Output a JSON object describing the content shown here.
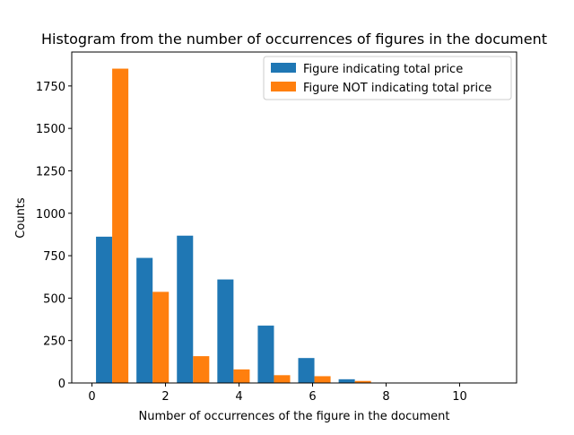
{
  "chart_data": {
    "type": "bar",
    "title": "Histogram from the number of occurrences of figures in the document",
    "xlabel": "Number of occurrences of the figure in the document",
    "ylabel": "Counts",
    "xlim": [
      -0.55,
      11.55
    ],
    "ylim": [
      0,
      1950
    ],
    "xticks": [
      0,
      2,
      4,
      6,
      8,
      10
    ],
    "yticks": [
      0,
      250,
      500,
      750,
      1000,
      1250,
      1500,
      1750
    ],
    "bin_edges": [
      0.0,
      1.1,
      2.2,
      3.3,
      4.4,
      5.5,
      6.6,
      7.7,
      8.8,
      9.9,
      11.0
    ],
    "series": [
      {
        "name": "Figure indicating total price",
        "color": "#1f77b4",
        "values": [
          862,
          737,
          868,
          610,
          338,
          147,
          22,
          0,
          0,
          0
        ]
      },
      {
        "name": "Figure NOT indicating total price",
        "color": "#ff7f0e",
        "values": [
          1852,
          537,
          158,
          80,
          46,
          40,
          12,
          0,
          0,
          0
        ]
      }
    ],
    "legend_position": "top-right",
    "grid": false
  }
}
